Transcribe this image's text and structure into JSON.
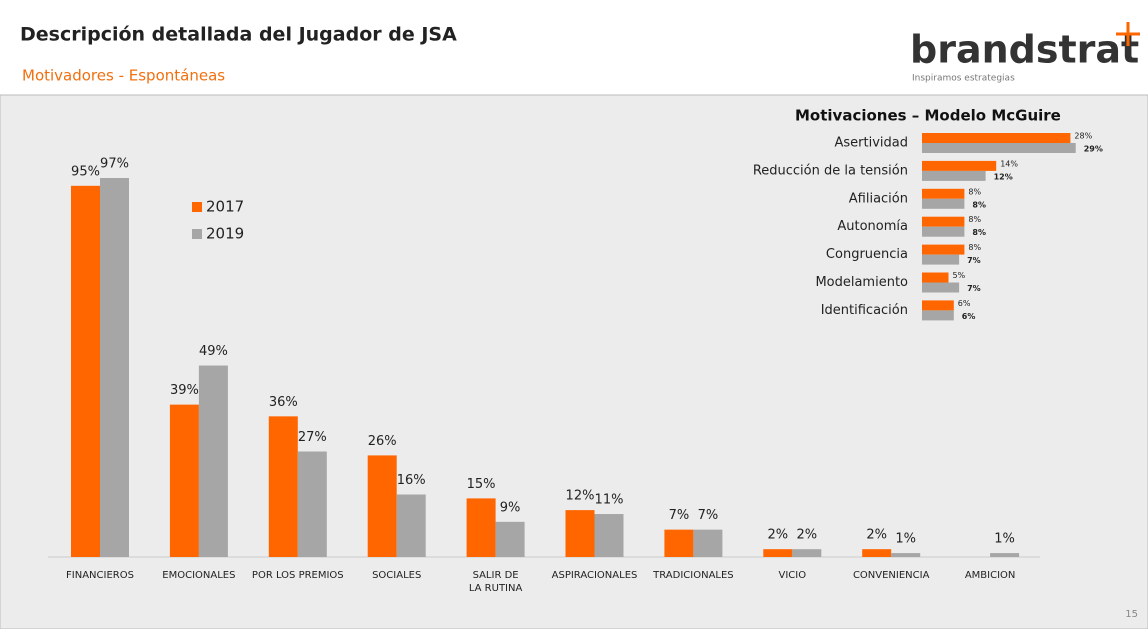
{
  "header": {
    "title": "Descripción detallada del Jugador de JSA",
    "subtitle": "Motivadores - Espontáneas",
    "logo": "brandstrat",
    "tagline": "Inspiramos estrategias"
  },
  "page_number": 15,
  "chart_data": [
    {
      "type": "bar",
      "categories": [
        "FINANCIEROS",
        "EMOCIONALES",
        "POR LOS PREMIOS",
        "SOCIALES",
        "SALIR DE LA RUTINA",
        "ASPIRACIONALES",
        "TRADICIONALES",
        "VICIO",
        "CONVENIENCIA",
        "AMBICION"
      ],
      "series": [
        {
          "name": "2017",
          "color": "#ff6600",
          "values": [
            95,
            39,
            36,
            26,
            15,
            12,
            7,
            2,
            2,
            null
          ],
          "value_labels": [
            "95%",
            "39%",
            "36%",
            "26%",
            "15%",
            "12%",
            "7%",
            "2%",
            "2%",
            null
          ]
        },
        {
          "name": "2019",
          "color": "#a6a6a6",
          "values": [
            97,
            49,
            27,
            16,
            9,
            11,
            7,
            2,
            1,
            1
          ],
          "value_labels": [
            "97%",
            "49%",
            "27%",
            "16%",
            "9%",
            "11%",
            "7%",
            "2%",
            "1%",
            "1%"
          ]
        }
      ]
    },
    {
      "type": "hbar",
      "title": "Motivaciones – Modelo McGuire",
      "categories": [
        "Asertividad",
        "Reducción de la tensión",
        "Afiliación",
        "Autonomía",
        "Congruencia",
        "Modelamiento",
        "Identificación"
      ],
      "series": [
        {
          "color": "#ff6600",
          "values": [
            28,
            14,
            8,
            8,
            8,
            5,
            6
          ],
          "value_labels": [
            "28%",
            "14%",
            "8%",
            "8%",
            "8%",
            "5%",
            "6%"
          ]
        },
        {
          "color": "#a6a6a6",
          "values": [
            29,
            12,
            8,
            8,
            7,
            7,
            6
          ],
          "value_labels": [
            "29%",
            "12%",
            "8%",
            "8%",
            "7%",
            "7%",
            "6%"
          ]
        }
      ]
    }
  ]
}
